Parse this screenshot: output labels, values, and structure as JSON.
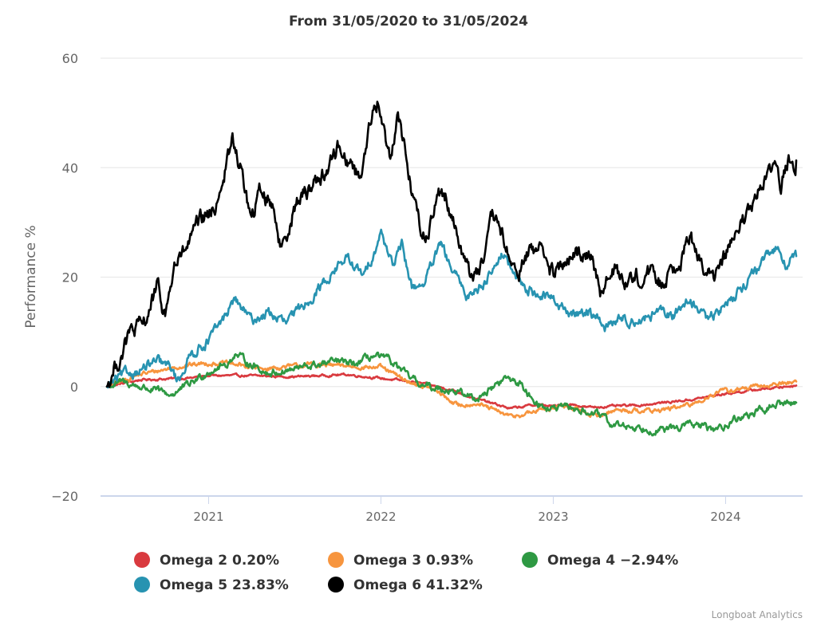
{
  "chart_data": {
    "type": "line",
    "title": "From 31/05/2020 to 31/05/2024",
    "xlabel": "",
    "ylabel": "Performance %",
    "x_range": [
      "2020-05-31",
      "2024-05-31"
    ],
    "ylim": [
      -20,
      60
    ],
    "y_ticks": [
      60,
      40,
      20,
      0,
      -20
    ],
    "y_tick_labels": [
      "60",
      "40",
      "20",
      "0",
      "−20"
    ],
    "x_ticks": [
      2021,
      2022,
      2023,
      2024
    ],
    "x_tick_labels": [
      "2021",
      "2022",
      "2023",
      "2024"
    ],
    "grid": true,
    "legend_position": "bottom",
    "credits": "Longboat Analytics",
    "series": [
      {
        "name": "Omega 2",
        "legend": "Omega 2 0.20%",
        "final_value": 0.2,
        "color": "#d93a3f",
        "noise": 0.15,
        "points": [
          [
            2020.41,
            0
          ],
          [
            2020.6,
            1.2
          ],
          [
            2020.9,
            1.6
          ],
          [
            2021.0,
            2.0
          ],
          [
            2021.2,
            2.0
          ],
          [
            2021.5,
            1.8
          ],
          [
            2021.8,
            2.2
          ],
          [
            2022.0,
            1.5
          ],
          [
            2022.2,
            0.8
          ],
          [
            2022.4,
            -0.5
          ],
          [
            2022.55,
            -2.2
          ],
          [
            2022.75,
            -4.0
          ],
          [
            2022.9,
            -3.3
          ],
          [
            2023.0,
            -3.6
          ],
          [
            2023.1,
            -3.2
          ],
          [
            2023.2,
            -3.8
          ],
          [
            2023.5,
            -3.4
          ],
          [
            2023.8,
            -2.4
          ],
          [
            2024.0,
            -1.3
          ],
          [
            2024.2,
            -0.5
          ],
          [
            2024.41,
            0.2
          ]
        ]
      },
      {
        "name": "Omega 3",
        "legend": "Omega 3 0.93%",
        "final_value": 0.93,
        "color": "#f7953e",
        "noise": 0.3,
        "points": [
          [
            2020.41,
            0
          ],
          [
            2020.6,
            2.2
          ],
          [
            2020.85,
            3.8
          ],
          [
            2021.0,
            4.3
          ],
          [
            2021.15,
            4.1
          ],
          [
            2021.3,
            3.2
          ],
          [
            2021.6,
            4.0
          ],
          [
            2021.9,
            3.6
          ],
          [
            2022.0,
            3.5
          ],
          [
            2022.15,
            1.0
          ],
          [
            2022.3,
            -0.5
          ],
          [
            2022.45,
            -3.5
          ],
          [
            2022.55,
            -3.0
          ],
          [
            2022.75,
            -5.5
          ],
          [
            2022.85,
            -5.0
          ],
          [
            2022.95,
            -4.0
          ],
          [
            2023.05,
            -3.6
          ],
          [
            2023.15,
            -4.3
          ],
          [
            2023.25,
            -5.5
          ],
          [
            2023.35,
            -4.3
          ],
          [
            2023.6,
            -4.4
          ],
          [
            2023.8,
            -3.4
          ],
          [
            2023.95,
            -1.0
          ],
          [
            2024.15,
            -0.2
          ],
          [
            2024.41,
            0.93
          ]
        ]
      },
      {
        "name": "Omega 4",
        "legend": "Omega 4 -2.94%",
        "final_value": -2.94,
        "color": "#2e9943",
        "noise": 0.5,
        "points": [
          [
            2020.41,
            0
          ],
          [
            2020.5,
            0.8
          ],
          [
            2020.65,
            -0.4
          ],
          [
            2020.78,
            -1.5
          ],
          [
            2020.88,
            0.2
          ],
          [
            2021.0,
            2.8
          ],
          [
            2021.12,
            4.3
          ],
          [
            2021.15,
            6.0
          ],
          [
            2021.25,
            4.0
          ],
          [
            2021.35,
            2.4
          ],
          [
            2021.55,
            3.5
          ],
          [
            2021.75,
            4.6
          ],
          [
            2021.85,
            4.0
          ],
          [
            2021.95,
            5.6
          ],
          [
            2022.05,
            4.8
          ],
          [
            2022.15,
            2.0
          ],
          [
            2022.25,
            0.0
          ],
          [
            2022.4,
            -0.5
          ],
          [
            2022.55,
            -2.2
          ],
          [
            2022.62,
            -0.8
          ],
          [
            2022.72,
            1.5
          ],
          [
            2022.8,
            0.8
          ],
          [
            2022.85,
            -1.2
          ],
          [
            2022.95,
            -4.0
          ],
          [
            2023.1,
            -4.0
          ],
          [
            2023.25,
            -5.0
          ],
          [
            2023.35,
            -7.0
          ],
          [
            2023.5,
            -7.5
          ],
          [
            2023.65,
            -8.0
          ],
          [
            2023.8,
            -6.8
          ],
          [
            2023.95,
            -8.0
          ],
          [
            2024.05,
            -6.0
          ],
          [
            2024.2,
            -4.5
          ],
          [
            2024.3,
            -3.2
          ],
          [
            2024.41,
            -2.94
          ]
        ]
      },
      {
        "name": "Omega 5",
        "legend": "Omega 5 23.83%",
        "final_value": 23.83,
        "color": "#2793b1",
        "noise": 0.7,
        "points": [
          [
            2020.41,
            0
          ],
          [
            2020.5,
            2.0
          ],
          [
            2020.6,
            3.0
          ],
          [
            2020.7,
            4.5
          ],
          [
            2020.78,
            3.5
          ],
          [
            2020.82,
            1.0
          ],
          [
            2020.9,
            6.0
          ],
          [
            2021.0,
            8.5
          ],
          [
            2021.08,
            12.0
          ],
          [
            2021.15,
            16.0
          ],
          [
            2021.25,
            12.0
          ],
          [
            2021.35,
            13.5
          ],
          [
            2021.45,
            11.5
          ],
          [
            2021.6,
            16.5
          ],
          [
            2021.75,
            22.0
          ],
          [
            2021.8,
            23.5
          ],
          [
            2021.9,
            20.0
          ],
          [
            2022.0,
            28.0
          ],
          [
            2022.08,
            22.0
          ],
          [
            2022.12,
            26.0
          ],
          [
            2022.18,
            18.0
          ],
          [
            2022.25,
            19.0
          ],
          [
            2022.35,
            26.0
          ],
          [
            2022.4,
            22.0
          ],
          [
            2022.5,
            16.5
          ],
          [
            2022.6,
            19.0
          ],
          [
            2022.7,
            24.5
          ],
          [
            2022.8,
            19.0
          ],
          [
            2022.9,
            17.0
          ],
          [
            2023.0,
            16.0
          ],
          [
            2023.1,
            13.0
          ],
          [
            2023.2,
            14.0
          ],
          [
            2023.3,
            11.0
          ],
          [
            2023.4,
            12.5
          ],
          [
            2023.5,
            12.0
          ],
          [
            2023.6,
            13.5
          ],
          [
            2023.7,
            12.8
          ],
          [
            2023.78,
            16.0
          ],
          [
            2023.85,
            14.0
          ],
          [
            2023.9,
            12.0
          ],
          [
            2024.0,
            15.0
          ],
          [
            2024.1,
            18.5
          ],
          [
            2024.2,
            22.0
          ],
          [
            2024.3,
            25.5
          ],
          [
            2024.35,
            22.5
          ],
          [
            2024.41,
            23.83
          ]
        ]
      },
      {
        "name": "Omega 6",
        "legend": "Omega 6 41.32%",
        "final_value": 41.32,
        "color": "#000000",
        "noise": 1.2,
        "points": [
          [
            2020.41,
            0
          ],
          [
            2020.48,
            5.0
          ],
          [
            2020.55,
            10.0
          ],
          [
            2020.62,
            11.0
          ],
          [
            2020.7,
            18.0
          ],
          [
            2020.75,
            13.0
          ],
          [
            2020.8,
            22.0
          ],
          [
            2020.85,
            24.0
          ],
          [
            2020.95,
            30.0
          ],
          [
            2021.03,
            32.0
          ],
          [
            2021.1,
            40.0
          ],
          [
            2021.14,
            45.0
          ],
          [
            2021.2,
            38.0
          ],
          [
            2021.25,
            30.0
          ],
          [
            2021.3,
            36.0
          ],
          [
            2021.38,
            33.0
          ],
          [
            2021.42,
            25.0
          ],
          [
            2021.5,
            33.0
          ],
          [
            2021.6,
            37.0
          ],
          [
            2021.7,
            40.0
          ],
          [
            2021.75,
            44.0
          ],
          [
            2021.82,
            41.0
          ],
          [
            2021.88,
            38.0
          ],
          [
            2021.92,
            46.0
          ],
          [
            2021.98,
            52.0
          ],
          [
            2022.05,
            42.0
          ],
          [
            2022.1,
            50.0
          ],
          [
            2022.18,
            36.0
          ],
          [
            2022.22,
            30.0
          ],
          [
            2022.27,
            27.0
          ],
          [
            2022.32,
            35.0
          ],
          [
            2022.38,
            35.0
          ],
          [
            2022.45,
            27.0
          ],
          [
            2022.52,
            20.0
          ],
          [
            2022.6,
            23.0
          ],
          [
            2022.65,
            31.0
          ],
          [
            2022.7,
            28.0
          ],
          [
            2022.78,
            20.0
          ],
          [
            2022.85,
            24.0
          ],
          [
            2022.92,
            26.0
          ],
          [
            2023.0,
            20.0
          ],
          [
            2023.05,
            22.0
          ],
          [
            2023.15,
            24.0
          ],
          [
            2023.22,
            25.0
          ],
          [
            2023.28,
            17.0
          ],
          [
            2023.35,
            21.0
          ],
          [
            2023.45,
            19.5
          ],
          [
            2023.55,
            21.0
          ],
          [
            2023.62,
            19.0
          ],
          [
            2023.7,
            22.0
          ],
          [
            2023.8,
            27.0
          ],
          [
            2023.88,
            22.0
          ],
          [
            2023.92,
            19.0
          ],
          [
            2024.0,
            24.0
          ],
          [
            2024.1,
            30.0
          ],
          [
            2024.2,
            36.0
          ],
          [
            2024.28,
            40.0
          ],
          [
            2024.32,
            37.0
          ],
          [
            2024.38,
            42.0
          ],
          [
            2024.41,
            41.32
          ]
        ]
      }
    ]
  }
}
